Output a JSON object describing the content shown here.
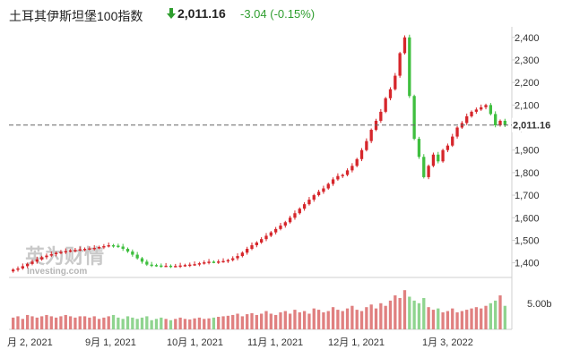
{
  "header": {
    "title": "土耳其伊斯坦堡100指数",
    "price": "2,011.16",
    "change": "-3.04",
    "change_pct": "(-0.15%)",
    "down_color": "#2f9e2f"
  },
  "watermark": {
    "cn": "英为财情",
    "en": "Investing.com"
  },
  "colors": {
    "up": "#d6262b",
    "down": "#3fbf3f",
    "vol_up": "#e08080",
    "vol_down": "#8fd48f"
  },
  "chart_data": {
    "type": "candlestick",
    "y_ticks": [
      "2,400",
      "2,300",
      "2,200",
      "2,100",
      "2,000",
      "1,900",
      "1,800",
      "1,700",
      "1,600",
      "1,500",
      "1,400"
    ],
    "ylim": [
      1335,
      2415
    ],
    "last_price": 2011.16,
    "last_price_label": "2,011.16",
    "volume_label": "5.00b",
    "x_ticks": [
      "月 2, 2021",
      "9月 1, 2021",
      "10月 1, 2021",
      "11月 1, 2021",
      "12月 1, 2021",
      "1月 3, 2022"
    ],
    "closes": [
      1370,
      1375,
      1385,
      1395,
      1405,
      1415,
      1425,
      1432,
      1438,
      1444,
      1448,
      1452,
      1455,
      1457,
      1460,
      1462,
      1464,
      1466,
      1470,
      1474,
      1478,
      1476,
      1472,
      1462,
      1450,
      1436,
      1420,
      1405,
      1392,
      1390,
      1388,
      1387,
      1387,
      1386,
      1386,
      1388,
      1390,
      1392,
      1394,
      1398,
      1402,
      1405,
      1404,
      1406,
      1408,
      1412,
      1420,
      1430,
      1445,
      1462,
      1478,
      1490,
      1505,
      1520,
      1535,
      1550,
      1565,
      1580,
      1600,
      1620,
      1640,
      1660,
      1680,
      1700,
      1715,
      1730,
      1750,
      1770,
      1785,
      1790,
      1810,
      1830,
      1860,
      1900,
      1940,
      1990,
      2030,
      2070,
      2130,
      2170,
      2230,
      2330,
      2400,
      2140,
      1950,
      1870,
      1780,
      1830,
      1880,
      1850,
      1900,
      1920,
      1960,
      2000,
      2020,
      2050,
      2070,
      2080,
      2090,
      2100,
      2060,
      2010,
      2030,
      2011
    ],
    "volumes": [
      0.45,
      0.5,
      0.4,
      0.55,
      0.5,
      0.45,
      0.5,
      0.55,
      0.5,
      0.45,
      0.5,
      0.55,
      0.5,
      0.45,
      0.5,
      0.5,
      0.45,
      0.5,
      0.4,
      0.45,
      0.5,
      0.55,
      0.45,
      0.4,
      0.5,
      0.45,
      0.4,
      0.45,
      0.5,
      0.35,
      0.4,
      0.45,
      0.4,
      0.35,
      0.4,
      0.45,
      0.4,
      0.38,
      0.42,
      0.45,
      0.4,
      0.42,
      0.45,
      0.48,
      0.5,
      0.52,
      0.55,
      0.6,
      0.5,
      0.58,
      0.62,
      0.55,
      0.6,
      0.7,
      0.6,
      0.55,
      0.65,
      0.7,
      0.6,
      0.75,
      0.65,
      0.7,
      0.6,
      0.8,
      0.75,
      0.65,
      0.7,
      0.85,
      0.75,
      0.7,
      0.8,
      0.9,
      0.75,
      0.7,
      0.85,
      0.95,
      0.8,
      1.0,
      0.9,
      1.1,
      1.3,
      1.2,
      1.5,
      1.25,
      1.1,
      1.0,
      1.2,
      0.85,
      0.75,
      0.8,
      0.65,
      0.7,
      0.8,
      0.65,
      0.7,
      0.75,
      0.8,
      0.85,
      0.8,
      0.9,
      1.0,
      1.1,
      1.3,
      0.9
    ]
  }
}
